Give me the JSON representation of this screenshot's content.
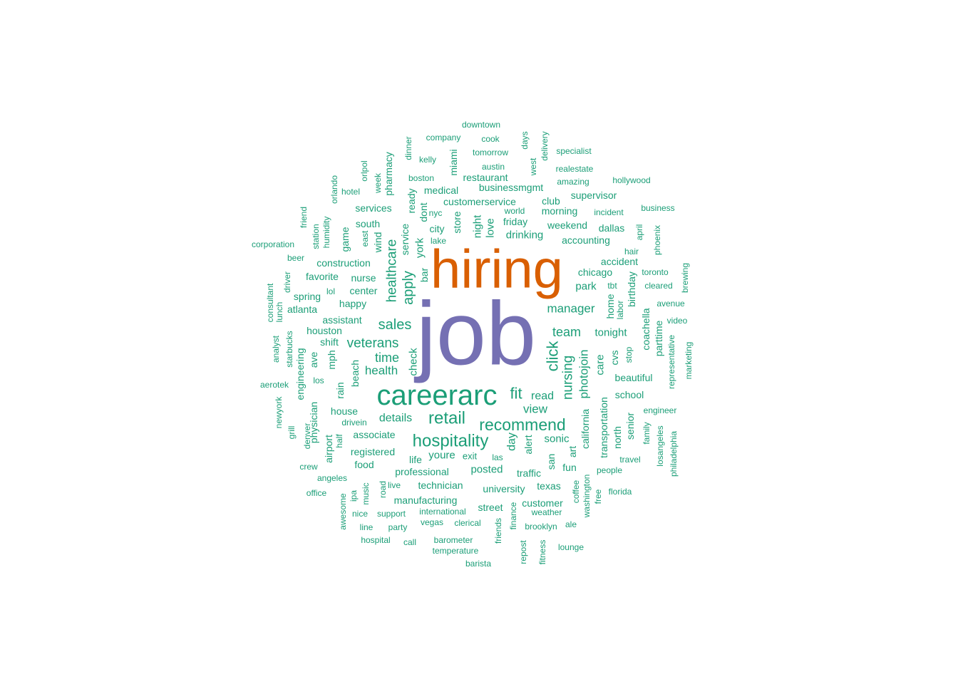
{
  "chart_data": {
    "type": "wordcloud",
    "colors": {
      "tier1": "#7570B3",
      "tier2": "#D95F02",
      "tier3": "#1B9E77"
    },
    "words": [
      {
        "text": "job",
        "weight": 100,
        "tier": "tier1"
      },
      {
        "text": "hiring",
        "weight": 72,
        "tier": "tier2"
      },
      {
        "text": "careerarc",
        "weight": 40,
        "tier": "tier3"
      },
      {
        "text": "hospitality",
        "weight": 24,
        "tier": "tier3"
      },
      {
        "text": "retail",
        "weight": 24,
        "tier": "tier3"
      },
      {
        "text": "recommend",
        "weight": 23,
        "tier": "tier3"
      },
      {
        "text": "click",
        "weight": 22,
        "tier": "tier3"
      },
      {
        "text": "fit",
        "weight": 22,
        "tier": "tier3"
      },
      {
        "text": "sales",
        "weight": 20,
        "tier": "tier3"
      },
      {
        "text": "apply",
        "weight": 20,
        "tier": "tier3"
      },
      {
        "text": "healthcare",
        "weight": 19,
        "tier": "tier3"
      },
      {
        "text": "veterans",
        "weight": 19,
        "tier": "tier3"
      },
      {
        "text": "nursing",
        "weight": 19,
        "tier": "tier3"
      },
      {
        "text": "time",
        "weight": 18,
        "tier": "tier3"
      },
      {
        "text": "team",
        "weight": 18,
        "tier": "tier3"
      },
      {
        "text": "health",
        "weight": 17,
        "tier": "tier3"
      },
      {
        "text": "manager",
        "weight": 17,
        "tier": "tier3"
      },
      {
        "text": "photojoin",
        "weight": 17,
        "tier": "tier3"
      },
      {
        "text": "view",
        "weight": 17,
        "tier": "tier3"
      },
      {
        "text": "details",
        "weight": 16,
        "tier": "tier3"
      },
      {
        "text": "read",
        "weight": 16,
        "tier": "tier3"
      },
      {
        "text": "day",
        "weight": 16,
        "tier": "tier3"
      },
      {
        "text": "sonic",
        "weight": 15,
        "tier": "tier3"
      },
      {
        "text": "check",
        "weight": 15,
        "tier": "tier3"
      },
      {
        "text": "night",
        "weight": 15,
        "tier": "tier3"
      },
      {
        "text": "love",
        "weight": 15,
        "tier": "tier3"
      },
      {
        "text": "drinking",
        "weight": 15,
        "tier": "tier3"
      },
      {
        "text": "york",
        "weight": 15,
        "tier": "tier3"
      },
      {
        "text": "posted",
        "weight": 15,
        "tier": "tier3"
      },
      {
        "text": "youre",
        "weight": 15,
        "tier": "tier3"
      },
      {
        "text": "tonight",
        "weight": 15,
        "tier": "tier3"
      },
      {
        "text": "care",
        "weight": 15,
        "tier": "tier3"
      },
      {
        "text": "park",
        "weight": 15,
        "tier": "tier3"
      },
      {
        "text": "chicago",
        "weight": 14,
        "tier": "tier3"
      },
      {
        "text": "professional",
        "weight": 14,
        "tier": "tier3"
      },
      {
        "text": "associate",
        "weight": 14,
        "tier": "tier3"
      },
      {
        "text": "alert",
        "weight": 14,
        "tier": "tier3"
      },
      {
        "text": "city",
        "weight": 14,
        "tier": "tier3"
      },
      {
        "text": "store",
        "weight": 14,
        "tier": "tier3"
      },
      {
        "text": "customer",
        "weight": 14,
        "tier": "tier3"
      },
      {
        "text": "manufacturing",
        "weight": 14,
        "tier": "tier3"
      },
      {
        "text": "technician",
        "weight": 14,
        "tier": "tier3"
      },
      {
        "text": "university",
        "weight": 14,
        "tier": "tier3"
      },
      {
        "text": "texas",
        "weight": 14,
        "tier": "tier3"
      },
      {
        "text": "registered",
        "weight": 14,
        "tier": "tier3"
      },
      {
        "text": "beach",
        "weight": 14,
        "tier": "tier3"
      },
      {
        "text": "house",
        "weight": 14,
        "tier": "tier3"
      },
      {
        "text": "nurse",
        "weight": 14,
        "tier": "tier3"
      },
      {
        "text": "happy",
        "weight": 14,
        "tier": "tier3"
      },
      {
        "text": "center",
        "weight": 14,
        "tier": "tier3"
      },
      {
        "text": "houston",
        "weight": 14,
        "tier": "tier3"
      },
      {
        "text": "assistant",
        "weight": 14,
        "tier": "tier3"
      },
      {
        "text": "school",
        "weight": 14,
        "tier": "tier3"
      },
      {
        "text": "beautiful",
        "weight": 14,
        "tier": "tier3"
      },
      {
        "text": "customerservice",
        "weight": 14,
        "tier": "tier3"
      },
      {
        "text": "weekend",
        "weight": 14,
        "tier": "tier3"
      },
      {
        "text": "accounting",
        "weight": 14,
        "tier": "tier3"
      },
      {
        "text": "morning",
        "weight": 14,
        "tier": "tier3"
      },
      {
        "text": "friday",
        "weight": 14,
        "tier": "tier3"
      },
      {
        "text": "supervisor",
        "weight": 14,
        "tier": "tier3"
      },
      {
        "text": "businessmgmt",
        "weight": 14,
        "tier": "tier3"
      },
      {
        "text": "restaurant",
        "weight": 14,
        "tier": "tier3"
      },
      {
        "text": "medical",
        "weight": 14,
        "tier": "tier3"
      },
      {
        "text": "services",
        "weight": 14,
        "tier": "tier3"
      },
      {
        "text": "south",
        "weight": 14,
        "tier": "tier3"
      },
      {
        "text": "construction",
        "weight": 14,
        "tier": "tier3"
      },
      {
        "text": "favorite",
        "weight": 14,
        "tier": "tier3"
      },
      {
        "text": "spring",
        "weight": 14,
        "tier": "tier3"
      },
      {
        "text": "atlanta",
        "weight": 14,
        "tier": "tier3"
      },
      {
        "text": "shift",
        "weight": 14,
        "tier": "tier3"
      },
      {
        "text": "california",
        "weight": 14,
        "tier": "tier3"
      },
      {
        "text": "transportation",
        "weight": 14,
        "tier": "tier3"
      },
      {
        "text": "north",
        "weight": 14,
        "tier": "tier3"
      },
      {
        "text": "senior",
        "weight": 14,
        "tier": "tier3"
      },
      {
        "text": "cvs",
        "weight": 14,
        "tier": "tier3"
      },
      {
        "text": "home",
        "weight": 14,
        "tier": "tier3"
      },
      {
        "text": "birthday",
        "weight": 14,
        "tier": "tier3"
      },
      {
        "text": "coachella",
        "weight": 14,
        "tier": "tier3"
      },
      {
        "text": "parttime",
        "weight": 14,
        "tier": "tier3"
      },
      {
        "text": "dallas",
        "weight": 14,
        "tier": "tier3"
      },
      {
        "text": "accident",
        "weight": 14,
        "tier": "tier3"
      },
      {
        "text": "club",
        "weight": 14,
        "tier": "tier3"
      },
      {
        "text": "miami",
        "weight": 14,
        "tier": "tier3"
      },
      {
        "text": "pharmacy",
        "weight": 14,
        "tier": "tier3"
      },
      {
        "text": "ready",
        "weight": 14,
        "tier": "tier3"
      },
      {
        "text": "dont",
        "weight": 14,
        "tier": "tier3"
      },
      {
        "text": "service",
        "weight": 14,
        "tier": "tier3"
      },
      {
        "text": "bar",
        "weight": 14,
        "tier": "tier3"
      },
      {
        "text": "game",
        "weight": 14,
        "tier": "tier3"
      },
      {
        "text": "wind",
        "weight": 14,
        "tier": "tier3"
      },
      {
        "text": "mph",
        "weight": 14,
        "tier": "tier3"
      },
      {
        "text": "ave",
        "weight": 14,
        "tier": "tier3"
      },
      {
        "text": "rain",
        "weight": 14,
        "tier": "tier3"
      },
      {
        "text": "engineering",
        "weight": 14,
        "tier": "tier3"
      },
      {
        "text": "physician",
        "weight": 14,
        "tier": "tier3"
      },
      {
        "text": "airport",
        "weight": 14,
        "tier": "tier3"
      },
      {
        "text": "food",
        "weight": 14,
        "tier": "tier3"
      },
      {
        "text": "street",
        "weight": 14,
        "tier": "tier3"
      },
      {
        "text": "traffic",
        "weight": 14,
        "tier": "tier3"
      },
      {
        "text": "san",
        "weight": 14,
        "tier": "tier3"
      },
      {
        "text": "art",
        "weight": 14,
        "tier": "tier3"
      },
      {
        "text": "fun",
        "weight": 14,
        "tier": "tier3"
      },
      {
        "text": "life",
        "weight": 14,
        "tier": "tier3"
      },
      {
        "text": "exit",
        "weight": 13,
        "tier": "tier3"
      },
      {
        "text": "downtown",
        "weight": 12,
        "tier": "tier3"
      },
      {
        "text": "company",
        "weight": 12,
        "tier": "tier3"
      },
      {
        "text": "cook",
        "weight": 12,
        "tier": "tier3"
      },
      {
        "text": "tomorrow",
        "weight": 12,
        "tier": "tier3"
      },
      {
        "text": "kelly",
        "weight": 12,
        "tier": "tier3"
      },
      {
        "text": "austin",
        "weight": 12,
        "tier": "tier3"
      },
      {
        "text": "boston",
        "weight": 12,
        "tier": "tier3"
      },
      {
        "text": "dinner",
        "weight": 12,
        "tier": "tier3"
      },
      {
        "text": "days",
        "weight": 12,
        "tier": "tier3"
      },
      {
        "text": "delivery",
        "weight": 12,
        "tier": "tier3"
      },
      {
        "text": "west",
        "weight": 12,
        "tier": "tier3"
      },
      {
        "text": "specialist",
        "weight": 12,
        "tier": "tier3"
      },
      {
        "text": "realestate",
        "weight": 12,
        "tier": "tier3"
      },
      {
        "text": "amazing",
        "weight": 12,
        "tier": "tier3"
      },
      {
        "text": "hollywood",
        "weight": 12,
        "tier": "tier3"
      },
      {
        "text": "world",
        "weight": 12,
        "tier": "tier3"
      },
      {
        "text": "incident",
        "weight": 12,
        "tier": "tier3"
      },
      {
        "text": "business",
        "weight": 12,
        "tier": "tier3"
      },
      {
        "text": "nyc",
        "weight": 12,
        "tier": "tier3"
      },
      {
        "text": "lake",
        "weight": 12,
        "tier": "tier3"
      },
      {
        "text": "hotel",
        "weight": 12,
        "tier": "tier3"
      },
      {
        "text": "orlpol",
        "weight": 12,
        "tier": "tier3"
      },
      {
        "text": "week",
        "weight": 12,
        "tier": "tier3"
      },
      {
        "text": "orlando",
        "weight": 12,
        "tier": "tier3"
      },
      {
        "text": "east",
        "weight": 12,
        "tier": "tier3"
      },
      {
        "text": "humidity",
        "weight": 12,
        "tier": "tier3"
      },
      {
        "text": "station",
        "weight": 12,
        "tier": "tier3"
      },
      {
        "text": "friend",
        "weight": 12,
        "tier": "tier3"
      },
      {
        "text": "corporation",
        "weight": 12,
        "tier": "tier3"
      },
      {
        "text": "beer",
        "weight": 12,
        "tier": "tier3"
      },
      {
        "text": "lol",
        "weight": 12,
        "tier": "tier3"
      },
      {
        "text": "driver",
        "weight": 12,
        "tier": "tier3"
      },
      {
        "text": "consultant",
        "weight": 12,
        "tier": "tier3"
      },
      {
        "text": "lunch",
        "weight": 12,
        "tier": "tier3"
      },
      {
        "text": "analyst",
        "weight": 12,
        "tier": "tier3"
      },
      {
        "text": "starbucks",
        "weight": 12,
        "tier": "tier3"
      },
      {
        "text": "aerotek",
        "weight": 12,
        "tier": "tier3"
      },
      {
        "text": "los",
        "weight": 12,
        "tier": "tier3"
      },
      {
        "text": "newyork",
        "weight": 12,
        "tier": "tier3"
      },
      {
        "text": "grill",
        "weight": 12,
        "tier": "tier3"
      },
      {
        "text": "denver",
        "weight": 12,
        "tier": "tier3"
      },
      {
        "text": "half",
        "weight": 12,
        "tier": "tier3"
      },
      {
        "text": "drivein",
        "weight": 12,
        "tier": "tier3"
      },
      {
        "text": "crew",
        "weight": 12,
        "tier": "tier3"
      },
      {
        "text": "angeles",
        "weight": 12,
        "tier": "tier3"
      },
      {
        "text": "office",
        "weight": 12,
        "tier": "tier3"
      },
      {
        "text": "awesome",
        "weight": 12,
        "tier": "tier3"
      },
      {
        "text": "ipa",
        "weight": 12,
        "tier": "tier3"
      },
      {
        "text": "music",
        "weight": 12,
        "tier": "tier3"
      },
      {
        "text": "road",
        "weight": 12,
        "tier": "tier3"
      },
      {
        "text": "live",
        "weight": 12,
        "tier": "tier3"
      },
      {
        "text": "nice",
        "weight": 12,
        "tier": "tier3"
      },
      {
        "text": "support",
        "weight": 12,
        "tier": "tier3"
      },
      {
        "text": "international",
        "weight": 12,
        "tier": "tier3"
      },
      {
        "text": "line",
        "weight": 12,
        "tier": "tier3"
      },
      {
        "text": "party",
        "weight": 12,
        "tier": "tier3"
      },
      {
        "text": "vegas",
        "weight": 12,
        "tier": "tier3"
      },
      {
        "text": "clerical",
        "weight": 12,
        "tier": "tier3"
      },
      {
        "text": "hospital",
        "weight": 12,
        "tier": "tier3"
      },
      {
        "text": "call",
        "weight": 12,
        "tier": "tier3"
      },
      {
        "text": "barometer",
        "weight": 12,
        "tier": "tier3"
      },
      {
        "text": "temperature",
        "weight": 12,
        "tier": "tier3"
      },
      {
        "text": "barista",
        "weight": 12,
        "tier": "tier3"
      },
      {
        "text": "friends",
        "weight": 12,
        "tier": "tier3"
      },
      {
        "text": "finance",
        "weight": 12,
        "tier": "tier3"
      },
      {
        "text": "repost",
        "weight": 12,
        "tier": "tier3"
      },
      {
        "text": "brooklyn",
        "weight": 12,
        "tier": "tier3"
      },
      {
        "text": "fitness",
        "weight": 12,
        "tier": "tier3"
      },
      {
        "text": "ale",
        "weight": 12,
        "tier": "tier3"
      },
      {
        "text": "lounge",
        "weight": 12,
        "tier": "tier3"
      },
      {
        "text": "weather",
        "weight": 12,
        "tier": "tier3"
      },
      {
        "text": "washington",
        "weight": 12,
        "tier": "tier3"
      },
      {
        "text": "coffee",
        "weight": 12,
        "tier": "tier3"
      },
      {
        "text": "free",
        "weight": 12,
        "tier": "tier3"
      },
      {
        "text": "people",
        "weight": 12,
        "tier": "tier3"
      },
      {
        "text": "florida",
        "weight": 12,
        "tier": "tier3"
      },
      {
        "text": "travel",
        "weight": 12,
        "tier": "tier3"
      },
      {
        "text": "family",
        "weight": 12,
        "tier": "tier3"
      },
      {
        "text": "losangeles",
        "weight": 12,
        "tier": "tier3"
      },
      {
        "text": "philadelphia",
        "weight": 12,
        "tier": "tier3"
      },
      {
        "text": "engineer",
        "weight": 12,
        "tier": "tier3"
      },
      {
        "text": "representative",
        "weight": 12,
        "tier": "tier3"
      },
      {
        "text": "marketing",
        "weight": 12,
        "tier": "tier3"
      },
      {
        "text": "video",
        "weight": 12,
        "tier": "tier3"
      },
      {
        "text": "avenue",
        "weight": 12,
        "tier": "tier3"
      },
      {
        "text": "brewing",
        "weight": 12,
        "tier": "tier3"
      },
      {
        "text": "cleared",
        "weight": 12,
        "tier": "tier3"
      },
      {
        "text": "toronto",
        "weight": 12,
        "tier": "tier3"
      },
      {
        "text": "hair",
        "weight": 12,
        "tier": "tier3"
      },
      {
        "text": "april",
        "weight": 12,
        "tier": "tier3"
      },
      {
        "text": "phoenix",
        "weight": 12,
        "tier": "tier3"
      },
      {
        "text": "tbt",
        "weight": 12,
        "tier": "tier3"
      },
      {
        "text": "labor",
        "weight": 12,
        "tier": "tier3"
      },
      {
        "text": "stop",
        "weight": 12,
        "tier": "tier3"
      },
      {
        "text": "las",
        "weight": 12,
        "tier": "tier3"
      }
    ]
  }
}
